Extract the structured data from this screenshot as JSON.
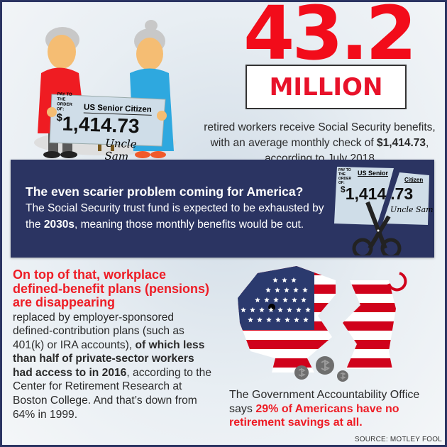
{
  "hero": {
    "number": "43.2",
    "unit": "MILLION",
    "text_1": "retired workers receive Social Security benefits, with an average monthly check of ",
    "text_bold": "$1,414.73",
    "text_2": ", according to July 2018"
  },
  "check": {
    "pay_to": "PAY TO THE ORDER OF:",
    "payee": "US Senior Citizen",
    "payee_part1": "US Senior",
    "payee_part2": "Citizen",
    "dollar_sign": "$",
    "amount": "1,414.73",
    "amount_part1": "1,414",
    "amount_part2": ".73",
    "signature": "Uncle Sam"
  },
  "panel": {
    "heading": "The even scarier problem coming for America?",
    "text_1": "The Social Security trust fund is expected to be exhausted by the ",
    "text_bold": "2030s",
    "text_2": ", meaning those monthly benefits would be cut."
  },
  "pensions": {
    "headline": "On top of that, workplace defined-benefit plans (pensions) are disappearing",
    "text_1": "replaced by employer-sponsored defined-contribution plans (such as 401(k) or IRA accounts), ",
    "text_bold_1": "of which less than half of private-sector workers had access to in 2016",
    "text_2": ", according to the Center for Retirement Research at Boston College. And that’s down from 64% in 1999."
  },
  "gao": {
    "text_1": "The Government Accountability Office says ",
    "text_red": "29% of Americans have no retirement savings at all."
  },
  "source": "SOURCE: MOTLEY FOOL",
  "colors": {
    "red": "#ee1c25",
    "navy": "#2b3462",
    "flag_blue": "#2b3a6e"
  }
}
